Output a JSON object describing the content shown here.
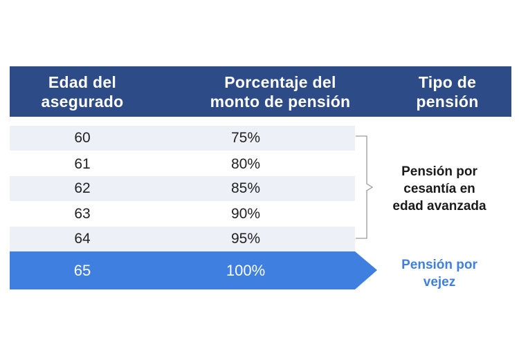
{
  "header": {
    "col1": [
      "Edad del",
      "asegurado"
    ],
    "col2": [
      "Porcentaje del",
      "monto de pensión"
    ],
    "col3": [
      "Tipo de",
      "pensión"
    ]
  },
  "rows": [
    {
      "age": "60",
      "percent": "75%"
    },
    {
      "age": "61",
      "percent": "80%"
    },
    {
      "age": "62",
      "percent": "85%"
    },
    {
      "age": "63",
      "percent": "90%"
    },
    {
      "age": "64",
      "percent": "95%"
    },
    {
      "age": "65",
      "percent": "100%"
    }
  ],
  "types": {
    "cesantia": [
      "Pensión por",
      "cesantía en",
      "edad avanzada"
    ],
    "vejez": [
      "Pensión por",
      "vejez"
    ]
  },
  "colors": {
    "header_bg": "#2d4b86",
    "highlight": "#3f7fe0",
    "stripe": "#edf0f6"
  }
}
